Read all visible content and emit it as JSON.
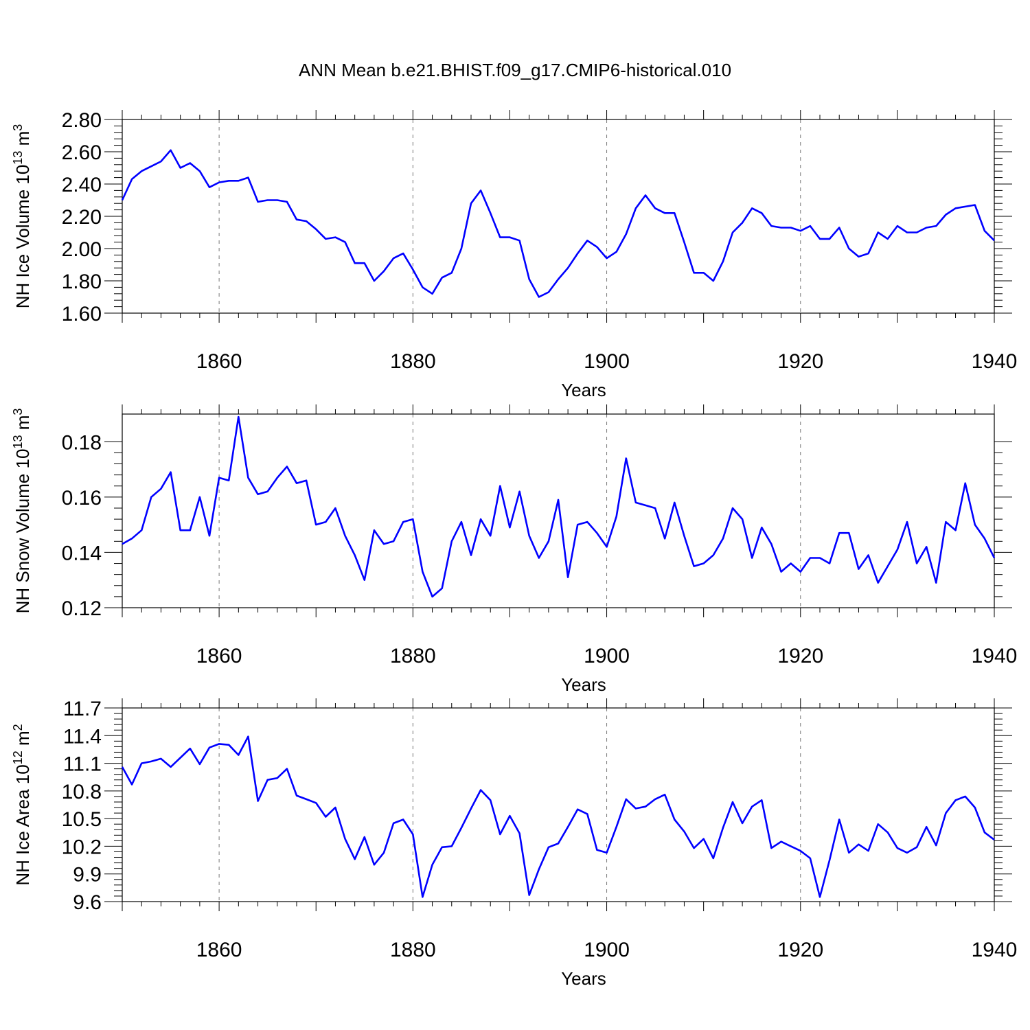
{
  "title": "ANN Mean b.e21.BHIST.f09_g17.CMIP6-historical.010",
  "colors": {
    "line": "#0000ff",
    "axis": "#000000",
    "grid": "#777777"
  },
  "chart_data": [
    {
      "type": "line",
      "ylabel_main": "NH Ice Volume 10",
      "ylabel_exp": "13",
      "ylabel_unit": " m",
      "ylabel_unit_exp": "3",
      "xlabel": "Years",
      "xlim": [
        1850,
        1940
      ],
      "ylim": [
        1.6,
        2.8
      ],
      "grid_x": [
        1860,
        1880,
        1900,
        1920
      ],
      "xticks": [
        1860,
        1880,
        1900,
        1920,
        1940
      ],
      "yticks": [
        "1.60",
        "1.80",
        "2.00",
        "2.20",
        "2.40",
        "2.60",
        "2.80"
      ],
      "series": [
        {
          "x": [
            1850,
            1851,
            1852,
            1853,
            1854,
            1855,
            1856,
            1857,
            1858,
            1859,
            1860,
            1861,
            1862,
            1863,
            1864,
            1865,
            1866,
            1867,
            1868,
            1869,
            1870,
            1871,
            1872,
            1873,
            1874,
            1875,
            1876,
            1877,
            1878,
            1879,
            1880,
            1881,
            1882,
            1883,
            1884,
            1885,
            1886,
            1887,
            1888,
            1889,
            1890,
            1891,
            1892,
            1893,
            1894,
            1895,
            1896,
            1897,
            1898,
            1899,
            1900,
            1901,
            1902,
            1903,
            1904,
            1905,
            1906,
            1907,
            1908,
            1909,
            1910,
            1911,
            1912,
            1913,
            1914,
            1915,
            1916,
            1917,
            1918,
            1919,
            1920,
            1921,
            1922,
            1923,
            1924,
            1925,
            1926,
            1927,
            1928,
            1929,
            1930,
            1931,
            1932,
            1933,
            1934,
            1935,
            1936,
            1937,
            1938,
            1939,
            1940
          ],
          "y": [
            2.3,
            2.43,
            2.48,
            2.51,
            2.54,
            2.61,
            2.5,
            2.53,
            2.48,
            2.38,
            2.41,
            2.42,
            2.42,
            2.44,
            2.29,
            2.3,
            2.3,
            2.29,
            2.18,
            2.17,
            2.12,
            2.06,
            2.07,
            2.04,
            1.91,
            1.91,
            1.8,
            1.86,
            1.94,
            1.97,
            1.87,
            1.76,
            1.72,
            1.82,
            1.85,
            2.0,
            2.28,
            2.36,
            2.22,
            2.07,
            2.07,
            2.05,
            1.81,
            1.7,
            1.73,
            1.81,
            1.88,
            1.97,
            2.05,
            2.01,
            1.94,
            1.98,
            2.09,
            2.25,
            2.33,
            2.25,
            2.22,
            2.22,
            2.04,
            1.85,
            1.85,
            1.8,
            1.92,
            2.1,
            2.16,
            2.25,
            2.22,
            2.14,
            2.13,
            2.13,
            2.11,
            2.14,
            2.06,
            2.06,
            2.13,
            2.0,
            1.95,
            1.97,
            2.1,
            2.06,
            2.14,
            2.1,
            2.1,
            2.13,
            2.14,
            2.21,
            2.25,
            2.26,
            2.27,
            2.11,
            2.05
          ]
        }
      ]
    },
    {
      "type": "line",
      "ylabel_main": "NH Snow Volume 10",
      "ylabel_exp": "13",
      "ylabel_unit": " m",
      "ylabel_unit_exp": "3",
      "xlabel": "Years",
      "xlim": [
        1850,
        1940
      ],
      "ylim": [
        0.12,
        0.19
      ],
      "grid_x": [
        1860,
        1880,
        1900,
        1920
      ],
      "xticks": [
        1860,
        1880,
        1900,
        1920,
        1940
      ],
      "yticks": [
        "0.12",
        "0.14",
        "0.16",
        "0.18"
      ],
      "series": [
        {
          "x": [
            1850,
            1851,
            1852,
            1853,
            1854,
            1855,
            1856,
            1857,
            1858,
            1859,
            1860,
            1861,
            1862,
            1863,
            1864,
            1865,
            1866,
            1867,
            1868,
            1869,
            1870,
            1871,
            1872,
            1873,
            1874,
            1875,
            1876,
            1877,
            1878,
            1879,
            1880,
            1881,
            1882,
            1883,
            1884,
            1885,
            1886,
            1887,
            1888,
            1889,
            1890,
            1891,
            1892,
            1893,
            1894,
            1895,
            1896,
            1897,
            1898,
            1899,
            1900,
            1901,
            1902,
            1903,
            1904,
            1905,
            1906,
            1907,
            1908,
            1909,
            1910,
            1911,
            1912,
            1913,
            1914,
            1915,
            1916,
            1917,
            1918,
            1919,
            1920,
            1921,
            1922,
            1923,
            1924,
            1925,
            1926,
            1927,
            1928,
            1929,
            1930,
            1931,
            1932,
            1933,
            1934,
            1935,
            1936,
            1937,
            1938,
            1939,
            1940
          ],
          "y": [
            0.143,
            0.145,
            0.148,
            0.16,
            0.163,
            0.169,
            0.148,
            0.148,
            0.16,
            0.146,
            0.167,
            0.166,
            0.189,
            0.167,
            0.161,
            0.162,
            0.167,
            0.171,
            0.165,
            0.166,
            0.15,
            0.151,
            0.156,
            0.146,
            0.139,
            0.13,
            0.148,
            0.143,
            0.144,
            0.151,
            0.152,
            0.133,
            0.124,
            0.127,
            0.144,
            0.151,
            0.139,
            0.152,
            0.146,
            0.164,
            0.149,
            0.162,
            0.146,
            0.138,
            0.144,
            0.159,
            0.131,
            0.15,
            0.151,
            0.147,
            0.142,
            0.153,
            0.174,
            0.158,
            0.157,
            0.156,
            0.145,
            0.158,
            0.146,
            0.135,
            0.136,
            0.139,
            0.145,
            0.156,
            0.152,
            0.138,
            0.149,
            0.143,
            0.133,
            0.136,
            0.133,
            0.138,
            0.138,
            0.136,
            0.147,
            0.147,
            0.134,
            0.139,
            0.129,
            0.135,
            0.141,
            0.151,
            0.136,
            0.142,
            0.129,
            0.151,
            0.148,
            0.165,
            0.15,
            0.145,
            0.138
          ]
        }
      ]
    },
    {
      "type": "line",
      "ylabel_main": "NH Ice Area 10",
      "ylabel_exp": "12",
      "ylabel_unit": " m",
      "ylabel_unit_exp": "2",
      "xlabel": "Years",
      "xlim": [
        1850,
        1940
      ],
      "ylim": [
        9.6,
        11.7
      ],
      "grid_x": [
        1860,
        1880,
        1900,
        1920
      ],
      "xticks": [
        1860,
        1880,
        1900,
        1920,
        1940
      ],
      "yticks": [
        "9.6",
        "9.9",
        "10.2",
        "10.5",
        "10.8",
        "11.1",
        "11.4",
        "11.7"
      ],
      "series": [
        {
          "x": [
            1850,
            1851,
            1852,
            1853,
            1854,
            1855,
            1856,
            1857,
            1858,
            1859,
            1860,
            1861,
            1862,
            1863,
            1864,
            1865,
            1866,
            1867,
            1868,
            1869,
            1870,
            1871,
            1872,
            1873,
            1874,
            1875,
            1876,
            1877,
            1878,
            1879,
            1880,
            1881,
            1882,
            1883,
            1884,
            1885,
            1886,
            1887,
            1888,
            1889,
            1890,
            1891,
            1892,
            1893,
            1894,
            1895,
            1896,
            1897,
            1898,
            1899,
            1900,
            1901,
            1902,
            1903,
            1904,
            1905,
            1906,
            1907,
            1908,
            1909,
            1910,
            1911,
            1912,
            1913,
            1914,
            1915,
            1916,
            1917,
            1918,
            1919,
            1920,
            1921,
            1922,
            1923,
            1924,
            1925,
            1926,
            1927,
            1928,
            1929,
            1930,
            1931,
            1932,
            1933,
            1934,
            1935,
            1936,
            1937,
            1938,
            1939,
            1940
          ],
          "y": [
            11.06,
            10.87,
            11.1,
            11.12,
            11.15,
            11.06,
            11.16,
            11.26,
            11.09,
            11.27,
            11.31,
            11.3,
            11.19,
            11.39,
            10.69,
            10.92,
            10.94,
            11.04,
            10.75,
            10.71,
            10.67,
            10.52,
            10.62,
            10.28,
            10.06,
            10.3,
            10.0,
            10.13,
            10.45,
            10.49,
            10.33,
            9.65,
            10.0,
            10.19,
            10.2,
            10.4,
            10.61,
            10.81,
            10.7,
            10.33,
            10.53,
            10.34,
            9.67,
            9.95,
            10.19,
            10.23,
            10.41,
            10.6,
            10.55,
            10.16,
            10.13,
            10.41,
            10.71,
            10.61,
            10.63,
            10.71,
            10.76,
            10.49,
            10.36,
            10.18,
            10.28,
            10.07,
            10.4,
            10.68,
            10.45,
            10.63,
            10.7,
            10.18,
            10.25,
            10.2,
            10.15,
            10.07,
            9.65,
            10.05,
            10.49,
            10.13,
            10.22,
            10.15,
            10.44,
            10.35,
            10.18,
            10.13,
            10.19,
            10.41,
            10.21,
            10.56,
            10.7,
            10.74,
            10.62,
            10.35,
            10.27
          ]
        }
      ]
    }
  ]
}
